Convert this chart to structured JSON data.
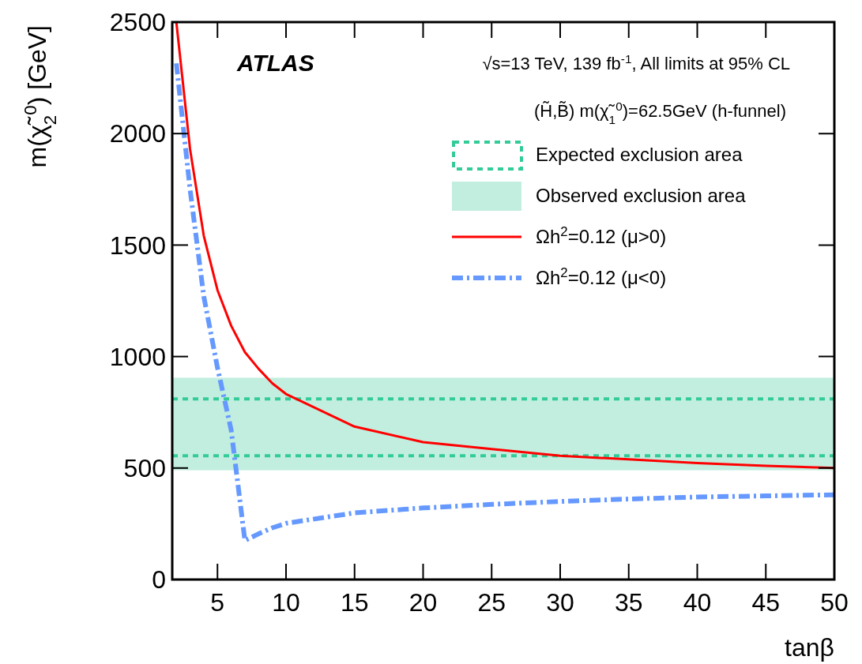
{
  "chart_data": {
    "type": "line",
    "xlabel": "tanβ",
    "ylabel": "m(χ̃$_{2}$$^{0}$) [GeV]",
    "annotations": [
      "ATLAS",
      "√s=13 TeV, 139 fb$^{-1}$, All limits at 95% CL",
      "(H̃,B̃)  m(χ̃$_{1}$$^{0}$)=62.5GeV (h-funnel)"
    ],
    "xlim": [
      1.7,
      50
    ],
    "xticks": [
      5,
      10,
      15,
      20,
      25,
      30,
      35,
      40,
      45,
      50
    ],
    "ylim": [
      0,
      2500
    ],
    "yticks": [
      0,
      500,
      1000,
      1500,
      2000,
      2500
    ],
    "grid": false,
    "legend": "top right",
    "ref_lines": [
      {
        "axis": "y",
        "value": 810,
        "label": "Expected exclusion area",
        "color": "#33cc99",
        "line_style": "dashed"
      },
      {
        "axis": "y",
        "value": 555,
        "color": "#33cc99",
        "line_style": "dashed"
      }
    ],
    "bands": [
      {
        "axis": "y",
        "from": 490,
        "to": 905,
        "label": "Observed exclusion area",
        "color": "#c2eedf"
      }
    ],
    "series": [
      {
        "name": "Ωh$^{2}$=0.12 (μ>0)",
        "color": "#ff0000",
        "line_style": "solid",
        "x": [
          2,
          3,
          4,
          5,
          6,
          7,
          8,
          9,
          10,
          15,
          20,
          25,
          30,
          35,
          40,
          45,
          50
        ],
        "values": [
          2500,
          1930,
          1542,
          1298,
          1138,
          1020,
          945,
          880,
          832,
          686,
          616,
          585,
          555,
          539,
          522,
          510,
          500
        ]
      },
      {
        "name": "Ωh$^{2}$=0.12 (μ<0)",
        "color": "#6699ff",
        "line_style": "dashed",
        "x": [
          2,
          3,
          4,
          5,
          6,
          7,
          8,
          9,
          10,
          15,
          20,
          25,
          30,
          35,
          40,
          45,
          50
        ],
        "values": [
          2315,
          1750,
          1270,
          950,
          670,
          175,
          205,
          232,
          252,
          299,
          321,
          337,
          350,
          361,
          370,
          375,
          380
        ]
      }
    ]
  }
}
